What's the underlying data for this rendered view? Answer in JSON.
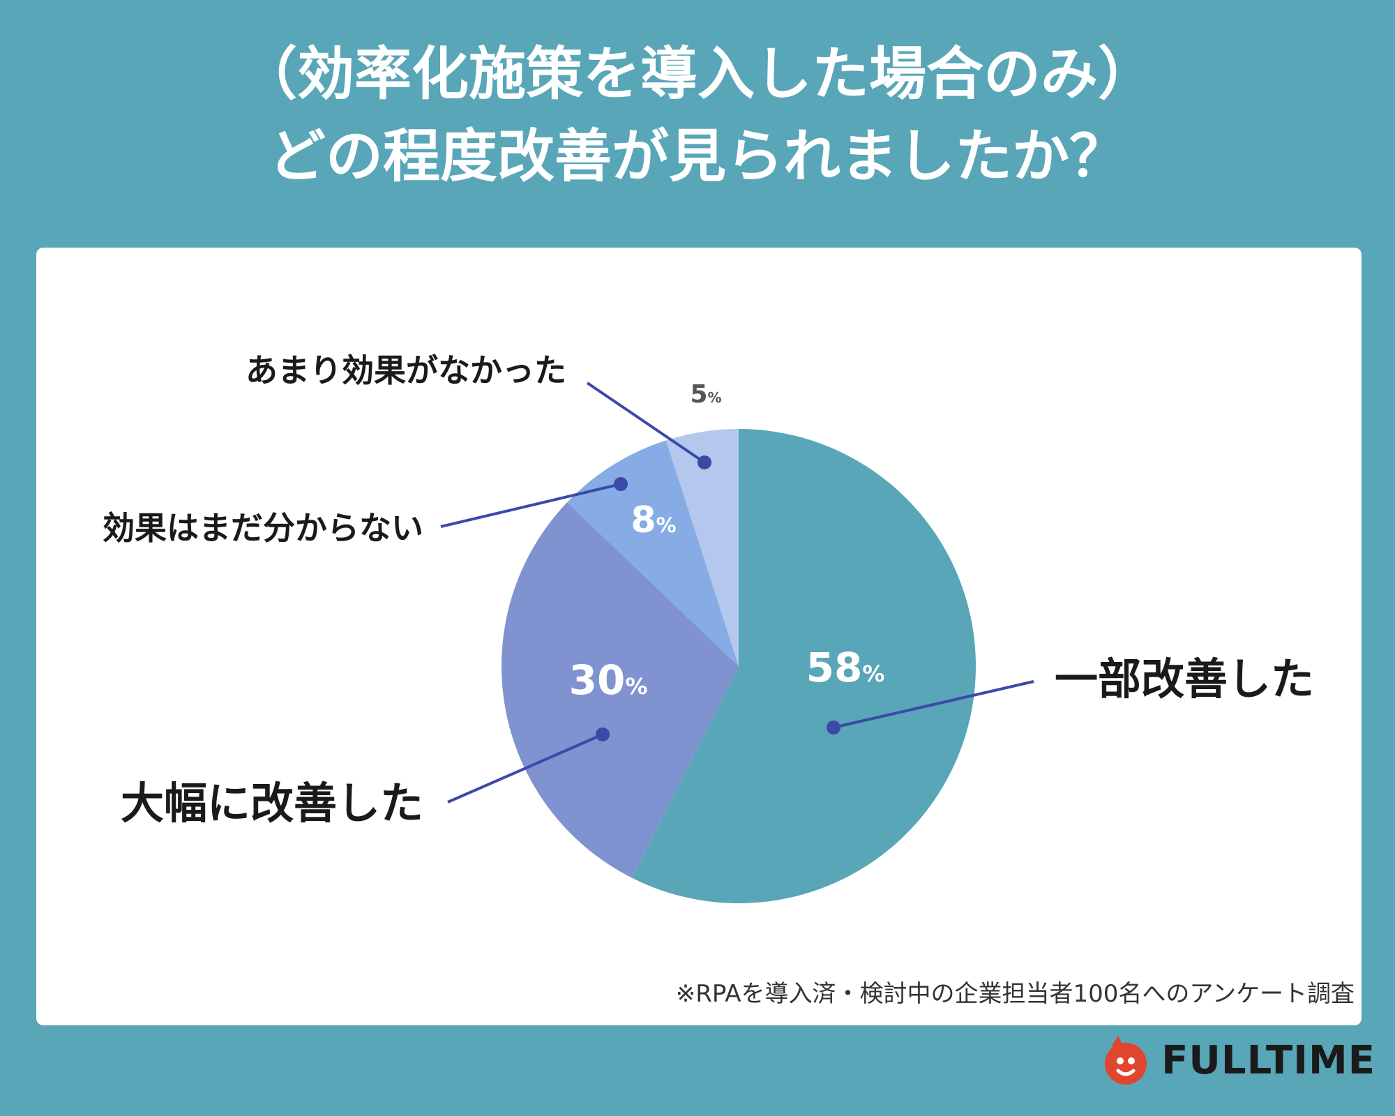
{
  "title": {
    "line1": "（効率化施策を導入した場合のみ）",
    "line2": "どの程度改善が見られましたか？"
  },
  "chart_data": {
    "type": "pie",
    "unit": "%",
    "start_angle": "12 o'clock, clockwise",
    "slices": [
      {
        "label": "一部改善した",
        "value": 58,
        "color": "#58a6b7",
        "value_color": "#ffffff"
      },
      {
        "label": "大幅に改善した",
        "value": 30,
        "color": "#8092d0",
        "value_color": "#ffffff"
      },
      {
        "label": "効果はまだ分からない",
        "value": 8,
        "color": "#86abe5",
        "value_color": "#ffffff"
      },
      {
        "label": "あまり効果がなかった",
        "value": 5,
        "color": "#b4c8ee",
        "value_color": "#555555"
      }
    ],
    "leader_color": "#3a4aa6"
  },
  "footnote": "※RPAを導入済・検討中の企業担当者100名へのアンケート調査",
  "logo": {
    "text": "FULLTIME",
    "icon": "face-mark-icon",
    "color": "#e0452e"
  }
}
